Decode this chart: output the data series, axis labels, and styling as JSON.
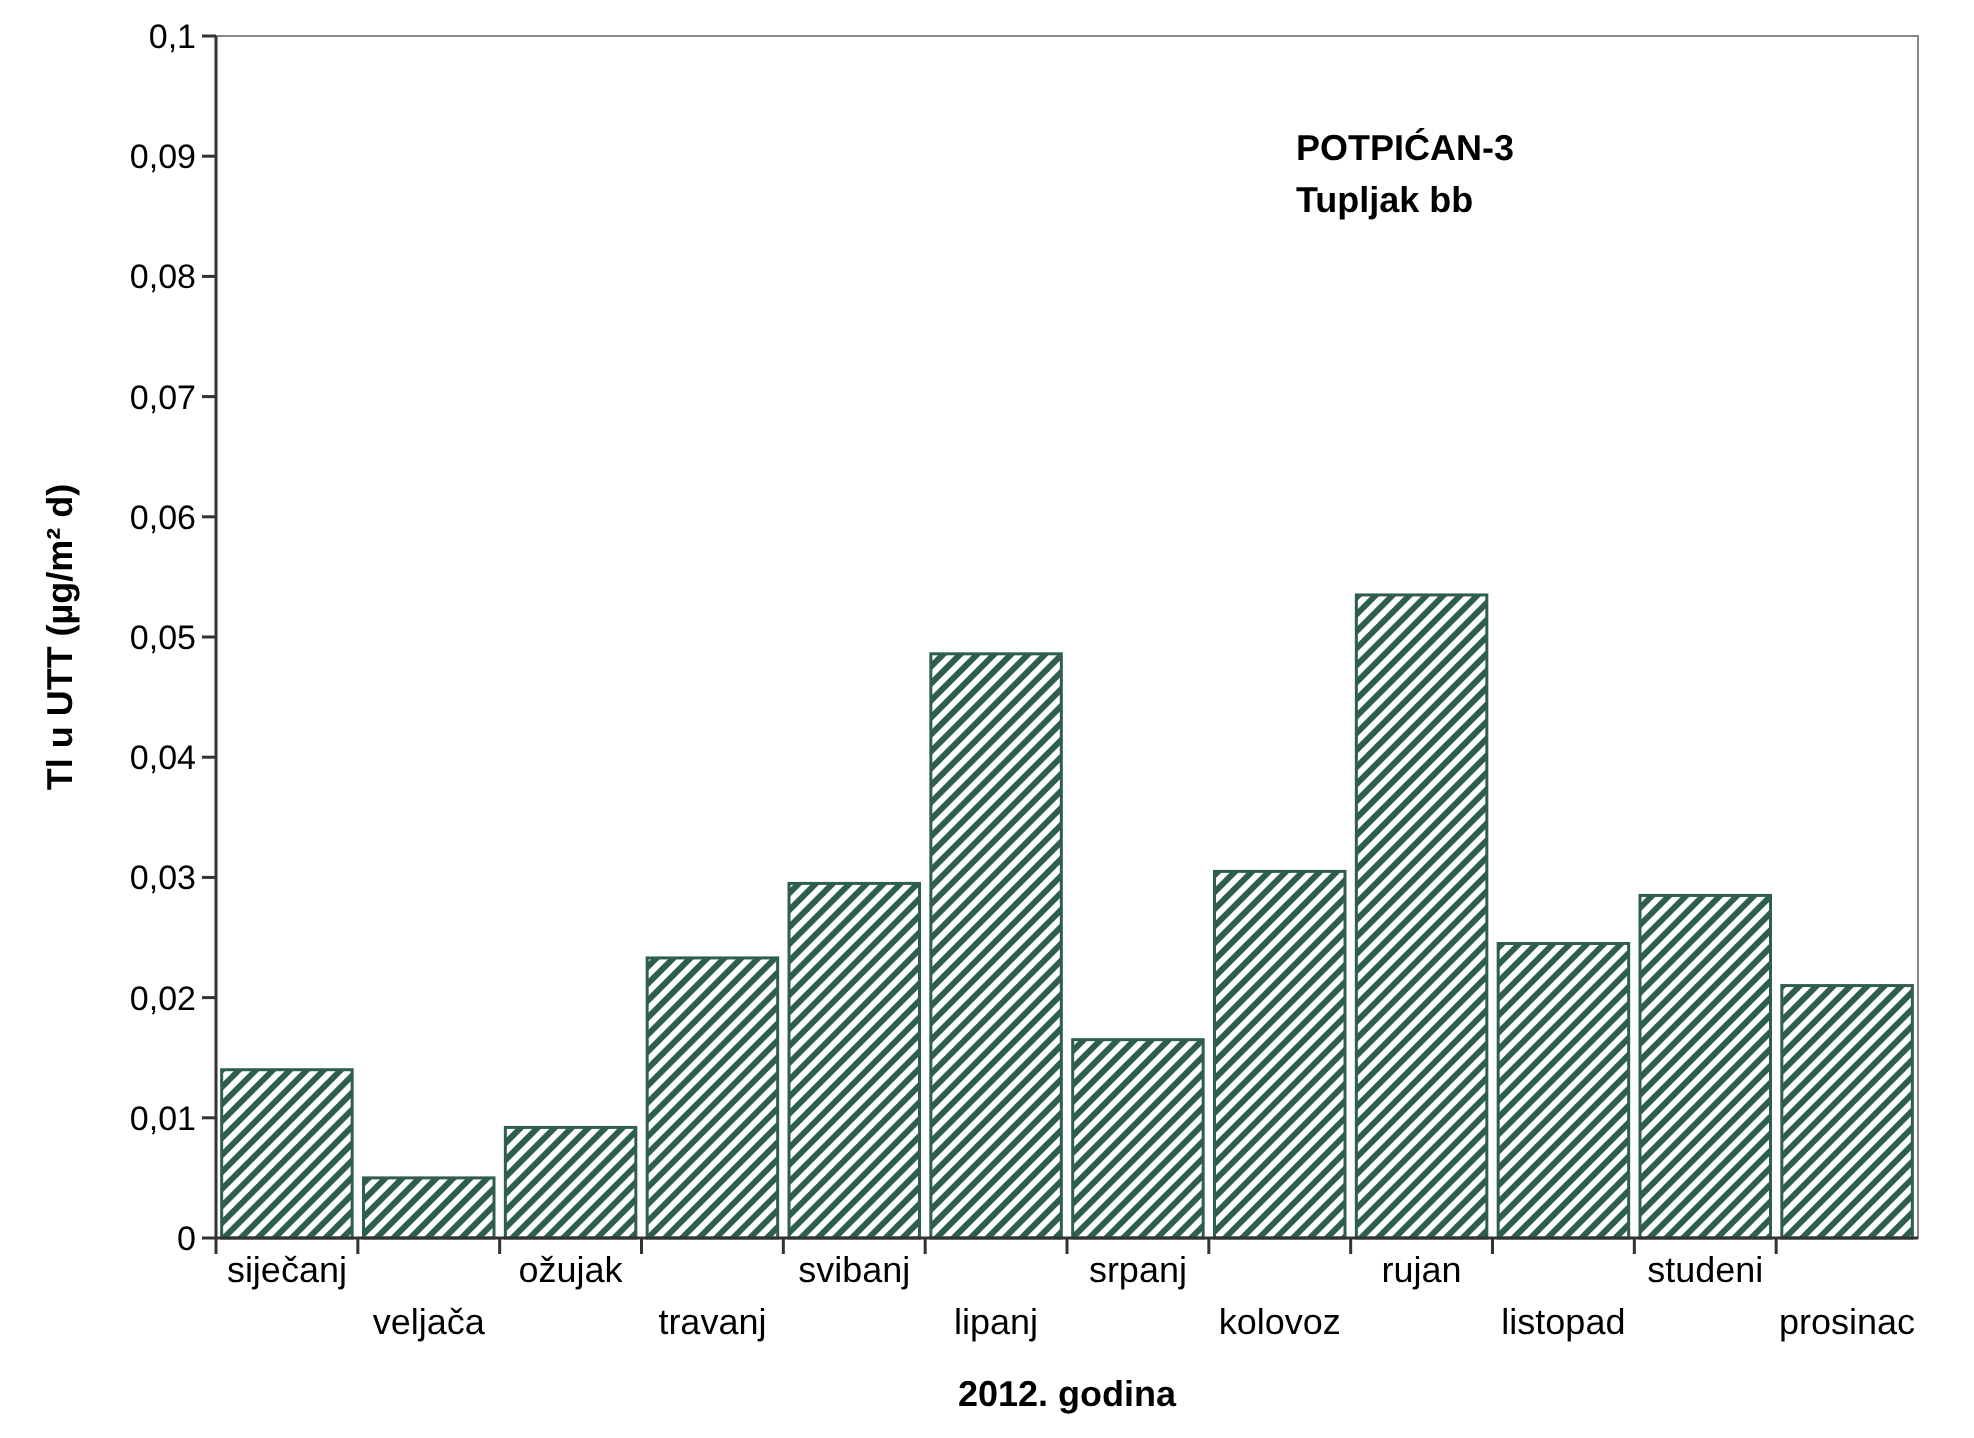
{
  "chart_data": {
    "type": "bar",
    "xlabel": "2012. godina",
    "ylabel": "Tl u UTT (µg/m² d)",
    "annotations": [
      "POTPIĆAN-3",
      "Tupljak bb"
    ],
    "categories": [
      "siječanj",
      "veljača",
      "ožujak",
      "travanj",
      "svibanj",
      "lipanj",
      "srpanj",
      "kolovoz",
      "rujan",
      "listopad",
      "studeni",
      "prosinac"
    ],
    "values": [
      0.014,
      0.005,
      0.0092,
      0.0233,
      0.0295,
      0.0486,
      0.0165,
      0.0305,
      0.0535,
      0.0245,
      0.0285,
      0.021
    ],
    "color": "#2e5e50",
    "ylim": [
      0,
      0.1
    ],
    "yticks": [
      0,
      {
        "value": 0.01,
        "label": "0,01"
      },
      {
        "value": 0.02,
        "label": "0,02"
      },
      {
        "value": 0.03,
        "label": "0,03"
      },
      {
        "value": 0.04,
        "label": "0,04"
      },
      {
        "value": 0.05,
        "label": "0,05"
      },
      {
        "value": 0.06,
        "label": "0,06"
      },
      {
        "value": 0.07,
        "label": "0,07"
      },
      {
        "value": 0.08,
        "label": "0,08"
      },
      {
        "value": 0.09,
        "label": "0,09"
      },
      {
        "value": 0.1,
        "label": "0,1"
      }
    ],
    "grid": false
  }
}
